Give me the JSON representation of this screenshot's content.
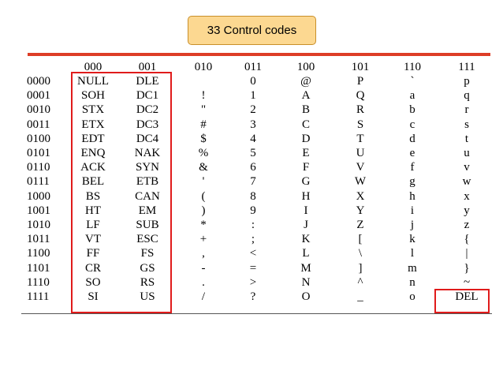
{
  "callout": {
    "label": "33 Control codes"
  },
  "table": {
    "col_headers": [
      "000",
      "001",
      "010",
      "011",
      "100",
      "101",
      "110",
      "111"
    ],
    "row_headers": [
      "0000",
      "0001",
      "0010",
      "0011",
      "0100",
      "0101",
      "0110",
      "0111",
      "1000",
      "1001",
      "1010",
      "1011",
      "1100",
      "1101",
      "1110",
      "1111"
    ],
    "rows": [
      [
        "NULL",
        "DLE",
        "",
        "0",
        "@",
        "P",
        "`",
        "p"
      ],
      [
        "SOH",
        "DC1",
        "!",
        "1",
        "A",
        "Q",
        "a",
        "q"
      ],
      [
        "STX",
        "DC2",
        "\"",
        "2",
        "B",
        "R",
        "b",
        "r"
      ],
      [
        "ETX",
        "DC3",
        "#",
        "3",
        "C",
        "S",
        "c",
        "s"
      ],
      [
        "EDT",
        "DC4",
        "$",
        "4",
        "D",
        "T",
        "d",
        "t"
      ],
      [
        "ENQ",
        "NAK",
        "%",
        "5",
        "E",
        "U",
        "e",
        "u"
      ],
      [
        "ACK",
        "SYN",
        "&",
        "6",
        "F",
        "V",
        "f",
        "v"
      ],
      [
        "BEL",
        "ETB",
        "'",
        "7",
        "G",
        "W",
        "g",
        "w"
      ],
      [
        "BS",
        "CAN",
        "(",
        "8",
        "H",
        "X",
        "h",
        "x"
      ],
      [
        "HT",
        "EM",
        ")",
        "9",
        "I",
        "Y",
        "i",
        "y"
      ],
      [
        "LF",
        "SUB",
        "*",
        ":",
        "J",
        "Z",
        "j",
        "z"
      ],
      [
        "VT",
        "ESC",
        "+",
        ";",
        "K",
        "[",
        "k",
        "{"
      ],
      [
        "FF",
        "FS",
        ",",
        "<",
        "L",
        "\\",
        "l",
        "|"
      ],
      [
        "CR",
        "GS",
        "-",
        "=",
        "M",
        "]",
        "m",
        "}"
      ],
      [
        "SO",
        "RS",
        ".",
        ">",
        "N",
        "^",
        "n",
        "~"
      ],
      [
        "SI",
        "US",
        "/",
        "?",
        "O",
        "_",
        "o",
        "DEL"
      ]
    ]
  },
  "colors": {
    "highlight": "#e01b1b",
    "callout_fill": "#fcd891",
    "rule": "#dd3d26"
  }
}
